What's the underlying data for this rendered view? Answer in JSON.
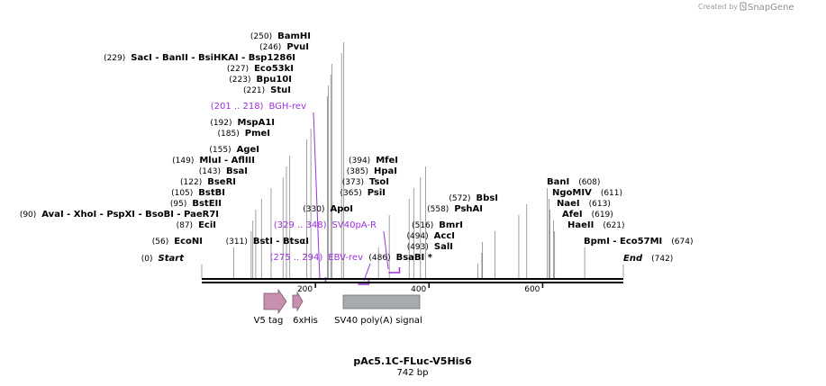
{
  "branding": {
    "created_by": "Created by",
    "product": "SnapGene"
  },
  "plasmid": {
    "name": "pAc5.1C-FLuc-V5His6",
    "length_label": "742 bp",
    "length": 742
  },
  "colors": {
    "primer": "#9b30d9",
    "feature_arrow": "#c98fae",
    "feature_box": "#a7abaf",
    "line": "#000000"
  },
  "axis": {
    "ticks": [
      {
        "value": 200,
        "label": "200"
      },
      {
        "value": 400,
        "label": "400"
      },
      {
        "value": 600,
        "label": "600"
      }
    ]
  },
  "sites": [
    {
      "label": "(0)",
      "name": "Start"
    },
    {
      "label": "(56)",
      "name": "EcoNI"
    },
    {
      "label": "(87)",
      "name": "EciI"
    },
    {
      "label": "(90)",
      "name": "AvaI   - XhoI   - PspXI   - BsoBI   - PaeR7I"
    },
    {
      "label": "(95)",
      "name": "BstEII"
    },
    {
      "label": "(105)",
      "name": "BstBI"
    },
    {
      "label": "(122)",
      "name": "BseRI"
    },
    {
      "label": "(143)",
      "name": "BsaI"
    },
    {
      "label": "(149)",
      "name": "MluI   - AflIII"
    },
    {
      "label": "(155)",
      "name": "AgeI"
    },
    {
      "label": "(185)",
      "name": "PmeI"
    },
    {
      "label": "(192)",
      "name": "MspA1I"
    },
    {
      "label": "(221)",
      "name": "StuI"
    },
    {
      "label": "(223)",
      "name": "Bpu10I"
    },
    {
      "label": "(227)",
      "name": "Eco53kI"
    },
    {
      "label": "(229)",
      "name": "SacI   - BanII   - BsiHKAI   - Bsp1286I"
    },
    {
      "label": "(246)",
      "name": "PvuI"
    },
    {
      "label": "(250)",
      "name": "BamHI"
    },
    {
      "label": "(311)",
      "name": "BstI   - BtsαI"
    },
    {
      "label": "(330)",
      "name": "ApoI"
    },
    {
      "label": "(365)",
      "name": "PsiI"
    },
    {
      "label": "(373)",
      "name": "TsoI"
    },
    {
      "label": "(385)",
      "name": "HpaI"
    },
    {
      "label": "(394)",
      "name": "MfeI"
    },
    {
      "label": "(486)",
      "name": "BsaBI  *"
    },
    {
      "label": "(493)",
      "name": "SalI"
    },
    {
      "label": "(494)",
      "name": "AccI"
    },
    {
      "label": "(516)",
      "name": "BmrI"
    },
    {
      "label": "(558)",
      "name": "PshAI"
    },
    {
      "label": "(572)",
      "name": "BbsI"
    },
    {
      "label": "(608)",
      "name": "BanI"
    },
    {
      "label": "(611)",
      "name": "NgoMIV"
    },
    {
      "label": "(613)",
      "name": "NaeI"
    },
    {
      "label": "(619)",
      "name": "AfeI"
    },
    {
      "label": "(621)",
      "name": "HaeII"
    },
    {
      "label": "(674)",
      "name": "BpmI   - Eco57MI"
    },
    {
      "label": "(742)",
      "name": "End"
    }
  ],
  "primers": [
    {
      "label": "(201 .. 218)",
      "name": "BGH-rev"
    },
    {
      "label": "(329 .. 348)",
      "name": "SV40pA-R"
    },
    {
      "label": "(275 .. 294)",
      "name": "EBV-rev"
    }
  ],
  "features": [
    {
      "name": "V5 tag"
    },
    {
      "name": "6xHis"
    },
    {
      "name": "SV40 poly(A) signal"
    }
  ]
}
